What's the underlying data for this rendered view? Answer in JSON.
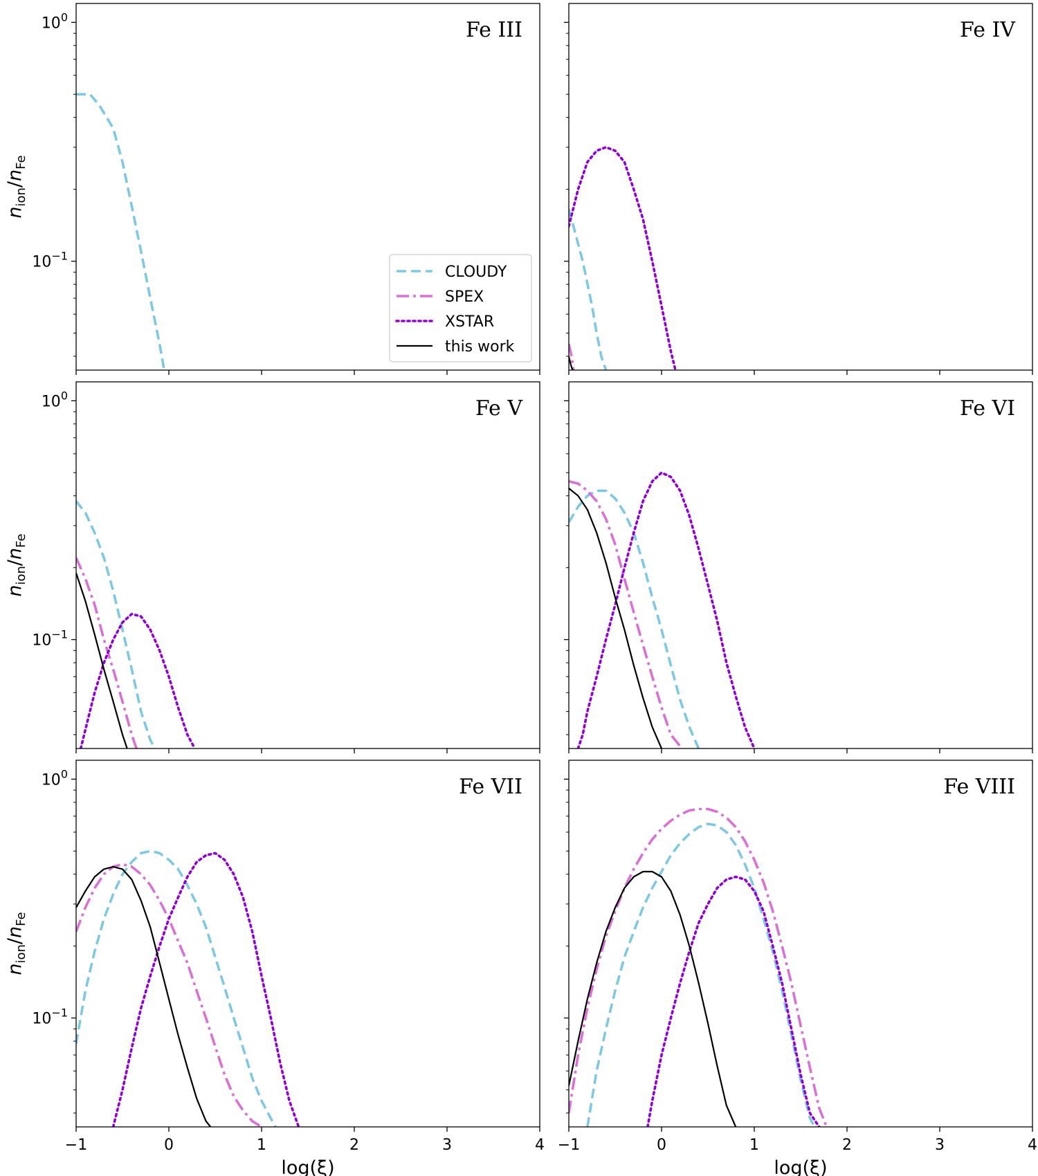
{
  "chart_data": {
    "type": "line",
    "layout": {
      "rows": 3,
      "cols": 2
    },
    "xlabel": "log(ξ)",
    "ylabel": {
      "main": "n",
      "sub1": "ion",
      "mid": "/n",
      "sub2": "Fe"
    },
    "xlim": [
      -1,
      4
    ],
    "ylim": [
      0.035,
      1.2
    ],
    "yscale": "log",
    "x_ticks": [
      "−1",
      "0",
      "1",
      "2",
      "3",
      "4"
    ],
    "x_tick_values": [
      -1,
      0,
      1,
      2,
      3,
      4
    ],
    "y_ticks": [
      {
        "base": "10",
        "exp": "0",
        "value": 1
      },
      {
        "base": "10",
        "exp": "−1",
        "value": 0.1
      }
    ],
    "legend": {
      "placement": "lower-right of first panel",
      "entries": [
        {
          "label": "CLOUDY",
          "color": "#7ec8e3",
          "style": "dashed"
        },
        {
          "label": "SPEX",
          "color": "#da70d6",
          "style": "dashdot"
        },
        {
          "label": "XSTAR",
          "color": "#9400d3",
          "style": "dotted"
        },
        {
          "label": "this work",
          "color": "#000000",
          "style": "solid"
        }
      ]
    },
    "panels": [
      {
        "title": "Fe III",
        "series": [
          {
            "name": "CLOUDY",
            "x": [
              -1.0,
              -0.85,
              -0.75,
              -0.6,
              -0.5,
              -0.4,
              -0.3,
              -0.2,
              -0.1,
              -0.05
            ],
            "y": [
              0.5,
              0.5,
              0.45,
              0.36,
              0.26,
              0.17,
              0.11,
              0.07,
              0.045,
              0.035
            ]
          }
        ]
      },
      {
        "title": "Fe IV",
        "series": [
          {
            "name": "CLOUDY",
            "x": [
              -1.0,
              -0.95,
              -0.85,
              -0.75,
              -0.7,
              -0.65,
              -0.6
            ],
            "y": [
              0.165,
              0.14,
              0.1,
              0.065,
              0.05,
              0.04,
              0.035
            ]
          },
          {
            "name": "SPEX",
            "x": [
              -1.0,
              -0.97,
              -0.95
            ],
            "y": [
              0.045,
              0.04,
              0.035
            ]
          },
          {
            "name": "XSTAR",
            "x": [
              -1.0,
              -0.9,
              -0.8,
              -0.7,
              -0.6,
              -0.5,
              -0.4,
              -0.3,
              -0.2,
              -0.1,
              0.0,
              0.1,
              0.15
            ],
            "y": [
              0.14,
              0.2,
              0.26,
              0.29,
              0.3,
              0.29,
              0.26,
              0.2,
              0.15,
              0.1,
              0.065,
              0.042,
              0.035
            ]
          },
          {
            "name": "this work",
            "x": [
              -1.0,
              -0.98,
              -0.96
            ],
            "y": [
              0.04,
              0.037,
              0.035
            ]
          }
        ]
      },
      {
        "title": "Fe V",
        "series": [
          {
            "name": "CLOUDY",
            "x": [
              -1.0,
              -0.9,
              -0.8,
              -0.7,
              -0.6,
              -0.5,
              -0.4,
              -0.3,
              -0.2,
              -0.15
            ],
            "y": [
              0.38,
              0.34,
              0.28,
              0.22,
              0.16,
              0.11,
              0.075,
              0.05,
              0.038,
              0.035
            ]
          },
          {
            "name": "SPEX",
            "x": [
              -1.0,
              -0.9,
              -0.8,
              -0.7,
              -0.6,
              -0.5,
              -0.4,
              -0.35
            ],
            "y": [
              0.22,
              0.18,
              0.14,
              0.1,
              0.075,
              0.055,
              0.04,
              0.035
            ]
          },
          {
            "name": "XSTAR",
            "x": [
              -0.95,
              -0.9,
              -0.8,
              -0.7,
              -0.6,
              -0.5,
              -0.4,
              -0.3,
              -0.2,
              -0.1,
              0.0,
              0.1,
              0.2,
              0.28
            ],
            "y": [
              0.035,
              0.042,
              0.06,
              0.08,
              0.1,
              0.118,
              0.128,
              0.125,
              0.11,
              0.09,
              0.07,
              0.052,
              0.04,
              0.035
            ]
          },
          {
            "name": "this work",
            "x": [
              -1.0,
              -0.9,
              -0.8,
              -0.7,
              -0.6,
              -0.5,
              -0.45
            ],
            "y": [
              0.19,
              0.145,
              0.105,
              0.075,
              0.055,
              0.04,
              0.035
            ]
          }
        ]
      },
      {
        "title": "Fe VI",
        "series": [
          {
            "name": "CLOUDY",
            "x": [
              -1.0,
              -0.9,
              -0.8,
              -0.7,
              -0.6,
              -0.5,
              -0.4,
              -0.3,
              -0.2,
              -0.1,
              0.0,
              0.1,
              0.2,
              0.3,
              0.4
            ],
            "y": [
              0.31,
              0.36,
              0.4,
              0.42,
              0.42,
              0.39,
              0.34,
              0.28,
              0.21,
              0.15,
              0.11,
              0.078,
              0.056,
              0.043,
              0.035
            ]
          },
          {
            "name": "SPEX",
            "x": [
              -1.0,
              -0.9,
              -0.8,
              -0.7,
              -0.6,
              -0.5,
              -0.4,
              -0.3,
              -0.2,
              -0.1,
              0.0,
              0.1,
              0.22
            ],
            "y": [
              0.46,
              0.45,
              0.42,
              0.38,
              0.32,
              0.25,
              0.18,
              0.13,
              0.095,
              0.07,
              0.052,
              0.04,
              0.035
            ]
          },
          {
            "name": "XSTAR",
            "x": [
              -0.9,
              -0.85,
              -0.8,
              -0.7,
              -0.6,
              -0.5,
              -0.4,
              -0.3,
              -0.2,
              -0.1,
              0.0,
              0.1,
              0.2,
              0.3,
              0.4,
              0.5,
              0.6,
              0.7,
              0.8,
              0.9,
              1.0
            ],
            "y": [
              0.035,
              0.04,
              0.05,
              0.07,
              0.1,
              0.14,
              0.2,
              0.28,
              0.38,
              0.46,
              0.5,
              0.48,
              0.42,
              0.33,
              0.24,
              0.17,
              0.12,
              0.08,
              0.058,
              0.043,
              0.035
            ]
          },
          {
            "name": "this work",
            "x": [
              -1.0,
              -0.9,
              -0.8,
              -0.7,
              -0.6,
              -0.5,
              -0.4,
              -0.3,
              -0.2,
              -0.1,
              0.0
            ],
            "y": [
              0.43,
              0.4,
              0.35,
              0.28,
              0.21,
              0.15,
              0.11,
              0.078,
              0.057,
              0.043,
              0.035
            ]
          }
        ]
      },
      {
        "title": "Fe VII",
        "series": [
          {
            "name": "CLOUDY",
            "x": [
              -1.0,
              -0.9,
              -0.8,
              -0.7,
              -0.6,
              -0.5,
              -0.4,
              -0.3,
              -0.2,
              -0.1,
              0.0,
              0.1,
              0.2,
              0.3,
              0.4,
              0.5,
              0.6,
              0.7,
              0.8,
              0.9,
              1.0,
              1.1,
              1.15
            ],
            "y": [
              0.078,
              0.13,
              0.19,
              0.26,
              0.33,
              0.4,
              0.45,
              0.49,
              0.5,
              0.49,
              0.46,
              0.42,
              0.36,
              0.3,
              0.24,
              0.18,
              0.135,
              0.1,
              0.075,
              0.056,
              0.045,
              0.038,
              0.035
            ]
          },
          {
            "name": "SPEX",
            "x": [
              -1.0,
              -0.9,
              -0.8,
              -0.7,
              -0.6,
              -0.5,
              -0.4,
              -0.3,
              -0.2,
              -0.1,
              0.0,
              0.1,
              0.2,
              0.3,
              0.4,
              0.5,
              0.6,
              0.7,
              0.8,
              0.9,
              1.0
            ],
            "y": [
              0.23,
              0.29,
              0.35,
              0.4,
              0.43,
              0.44,
              0.43,
              0.4,
              0.36,
              0.31,
              0.26,
              0.21,
              0.17,
              0.13,
              0.1,
              0.076,
              0.058,
              0.047,
              0.041,
              0.037,
              0.035
            ]
          },
          {
            "name": "XSTAR",
            "x": [
              -0.6,
              -0.5,
              -0.4,
              -0.3,
              -0.2,
              -0.1,
              0.0,
              0.1,
              0.2,
              0.3,
              0.4,
              0.5,
              0.6,
              0.7,
              0.8,
              0.9,
              1.0,
              1.1,
              1.2,
              1.3,
              1.4
            ],
            "y": [
              0.035,
              0.05,
              0.075,
              0.11,
              0.15,
              0.2,
              0.26,
              0.32,
              0.39,
              0.45,
              0.48,
              0.49,
              0.46,
              0.4,
              0.32,
              0.23,
              0.15,
              0.1,
              0.065,
              0.045,
              0.035
            ]
          },
          {
            "name": "this work",
            "x": [
              -1.0,
              -0.9,
              -0.8,
              -0.7,
              -0.6,
              -0.5,
              -0.4,
              -0.3,
              -0.2,
              -0.1,
              0.0,
              0.1,
              0.2,
              0.3,
              0.4,
              0.45
            ],
            "y": [
              0.29,
              0.34,
              0.39,
              0.42,
              0.43,
              0.42,
              0.38,
              0.31,
              0.24,
              0.17,
              0.12,
              0.085,
              0.062,
              0.046,
              0.037,
              0.035
            ]
          }
        ]
      },
      {
        "title": "Fe VIII",
        "series": [
          {
            "name": "CLOUDY",
            "x": [
              -0.8,
              -0.7,
              -0.6,
              -0.5,
              -0.4,
              -0.3,
              -0.2,
              -0.1,
              0.0,
              0.1,
              0.2,
              0.3,
              0.4,
              0.5,
              0.6,
              0.7,
              0.8,
              0.9,
              1.0,
              1.1,
              1.2,
              1.3,
              1.4,
              1.5,
              1.6,
              1.65
            ],
            "y": [
              0.035,
              0.06,
              0.09,
              0.13,
              0.18,
              0.23,
              0.29,
              0.35,
              0.41,
              0.48,
              0.54,
              0.59,
              0.63,
              0.65,
              0.64,
              0.6,
              0.53,
              0.44,
              0.35,
              0.26,
              0.19,
              0.13,
              0.085,
              0.055,
              0.038,
              0.035
            ]
          },
          {
            "name": "SPEX",
            "x": [
              -1.0,
              -0.9,
              -0.8,
              -0.7,
              -0.6,
              -0.5,
              -0.4,
              -0.3,
              -0.2,
              -0.1,
              0.0,
              0.1,
              0.2,
              0.3,
              0.4,
              0.5,
              0.6,
              0.7,
              0.8,
              0.9,
              1.0,
              1.1,
              1.2,
              1.3,
              1.4,
              1.5,
              1.6,
              1.7,
              1.78
            ],
            "y": [
              0.04,
              0.07,
              0.11,
              0.16,
              0.22,
              0.28,
              0.35,
              0.42,
              0.49,
              0.56,
              0.62,
              0.67,
              0.71,
              0.74,
              0.75,
              0.75,
              0.73,
              0.69,
              0.63,
              0.55,
              0.46,
              0.37,
              0.28,
              0.2,
              0.14,
              0.093,
              0.062,
              0.042,
              0.035
            ]
          },
          {
            "name": "XSTAR",
            "x": [
              -0.15,
              -0.1,
              0.0,
              0.1,
              0.2,
              0.3,
              0.4,
              0.5,
              0.6,
              0.7,
              0.8,
              0.9,
              1.0,
              1.1,
              1.2,
              1.3,
              1.4,
              1.5,
              1.6,
              1.7
            ],
            "y": [
              0.035,
              0.045,
              0.07,
              0.1,
              0.14,
              0.19,
              0.25,
              0.3,
              0.35,
              0.38,
              0.39,
              0.38,
              0.34,
              0.28,
              0.2,
              0.14,
              0.09,
              0.058,
              0.04,
              0.035
            ]
          },
          {
            "name": "this work",
            "x": [
              -1.0,
              -0.9,
              -0.8,
              -0.7,
              -0.6,
              -0.5,
              -0.4,
              -0.3,
              -0.2,
              -0.1,
              0.0,
              0.1,
              0.2,
              0.3,
              0.4,
              0.5,
              0.6,
              0.7,
              0.8
            ],
            "y": [
              0.052,
              0.08,
              0.12,
              0.17,
              0.23,
              0.29,
              0.35,
              0.39,
              0.41,
              0.41,
              0.39,
              0.34,
              0.27,
              0.2,
              0.14,
              0.095,
              0.063,
              0.043,
              0.035
            ]
          }
        ]
      }
    ]
  }
}
